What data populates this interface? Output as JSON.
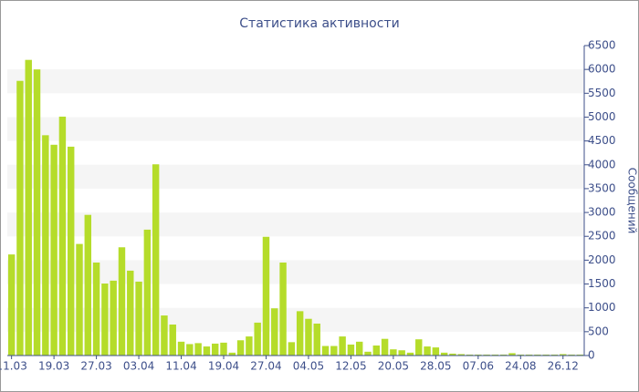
{
  "chart_data": {
    "type": "bar",
    "title": "Статистика активности",
    "y_label": "Сообщений",
    "categories": [
      "11.03",
      null,
      null,
      null,
      null,
      "19.03",
      null,
      null,
      null,
      null,
      "27.03",
      null,
      null,
      null,
      null,
      "03.04",
      null,
      null,
      null,
      null,
      "11.04",
      null,
      null,
      null,
      null,
      "19.04",
      null,
      null,
      null,
      null,
      "27.04",
      null,
      null,
      null,
      null,
      "04.05",
      null,
      null,
      null,
      null,
      "12.05",
      null,
      null,
      null,
      null,
      "20.05",
      null,
      null,
      null,
      null,
      "28.05",
      null,
      null,
      null,
      null,
      "07.06",
      null,
      null,
      null,
      null,
      "24.08",
      null,
      null,
      null,
      null,
      "26.12",
      null,
      null
    ],
    "values": [
      2120,
      5760,
      6200,
      6000,
      4620,
      4420,
      5010,
      4380,
      2340,
      2950,
      1950,
      1510,
      1570,
      2270,
      1780,
      1550,
      2640,
      4010,
      840,
      650,
      290,
      240,
      260,
      190,
      250,
      270,
      60,
      320,
      400,
      690,
      2490,
      990,
      1950,
      280,
      930,
      770,
      670,
      200,
      200,
      400,
      230,
      290,
      80,
      210,
      350,
      130,
      110,
      60,
      340,
      190,
      170,
      60,
      40,
      30,
      20,
      20,
      20,
      20,
      20,
      50,
      20,
      20,
      20,
      20,
      20,
      30,
      20,
      20
    ],
    "color": "#b5dc2a",
    "ylim": [
      0,
      6500
    ],
    "yticks": [
      0,
      500,
      1000,
      1500,
      2000,
      2500,
      3000,
      3500,
      4000,
      4500,
      5000,
      5500,
      6000,
      6500
    ],
    "grid": true,
    "y_axis_side": "right"
  }
}
